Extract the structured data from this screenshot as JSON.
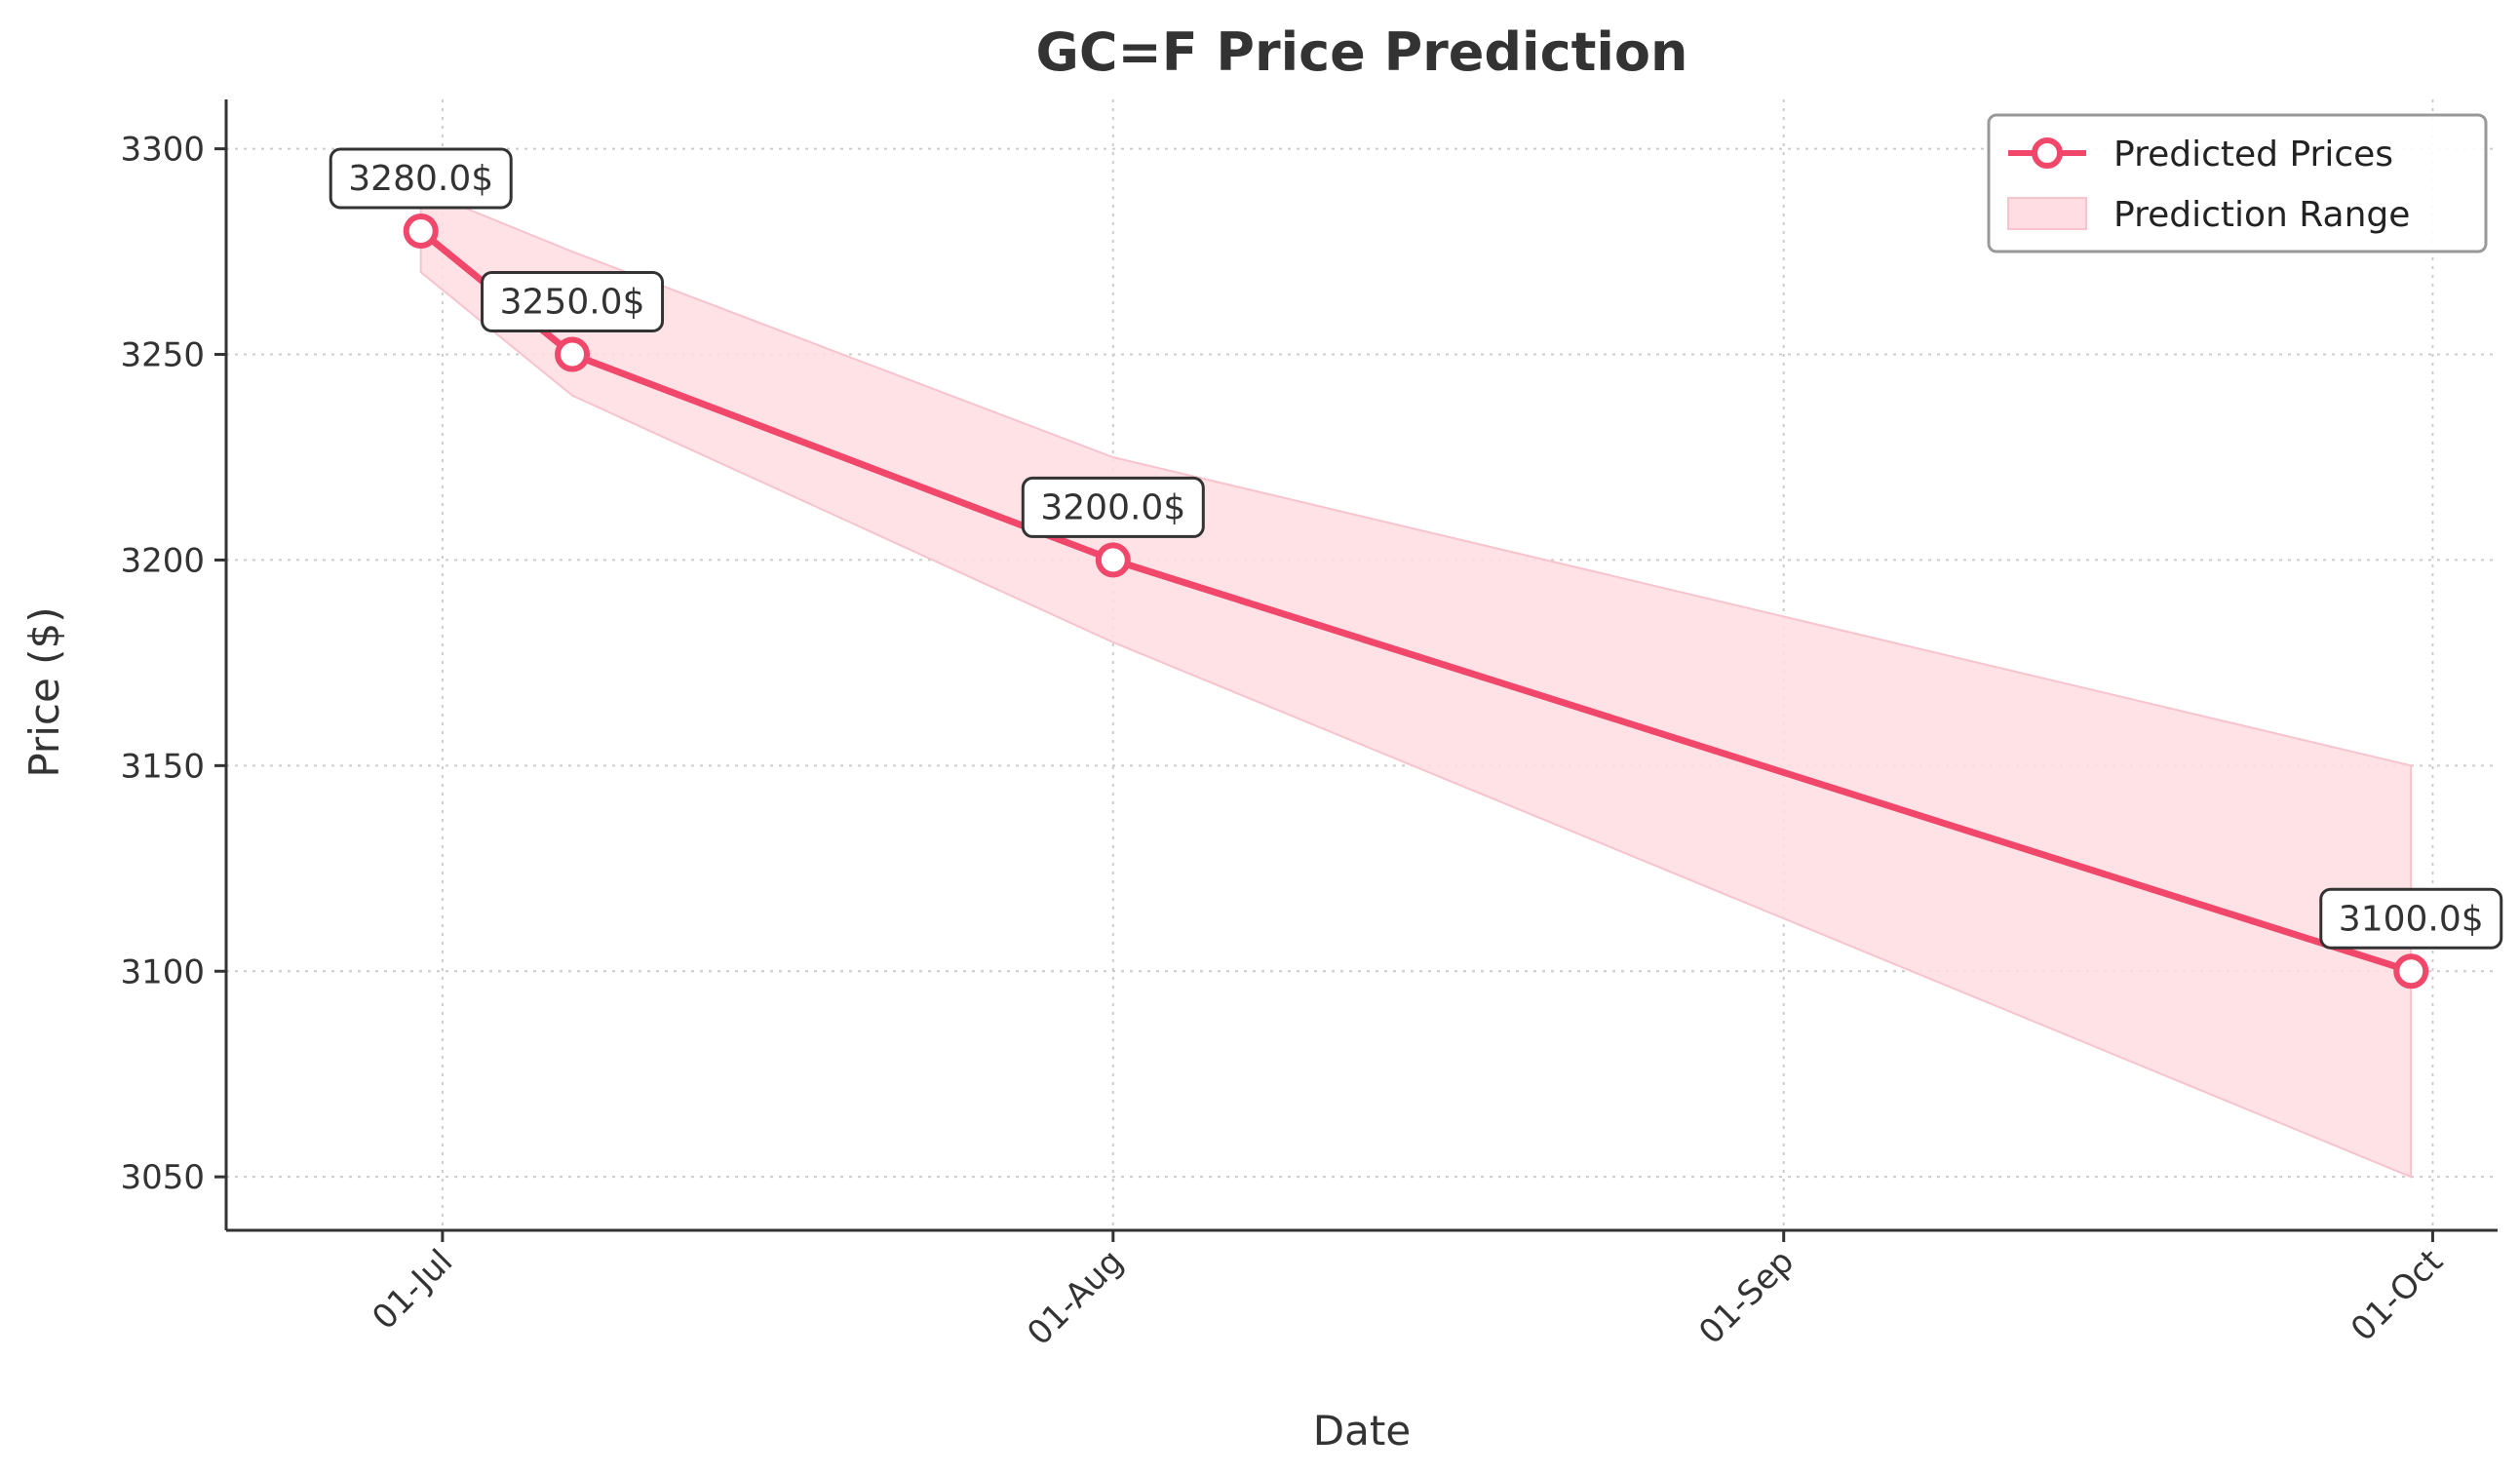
{
  "chart_data": {
    "type": "line",
    "title": "GC=F Price Prediction",
    "xlabel": "Date",
    "ylabel": "Price ($)",
    "x_axis_type": "date",
    "xlim": [
      "2025-06-21",
      "2025-10-04"
    ],
    "ylim": [
      3037,
      3312
    ],
    "x_ticks": [
      {
        "date": "2025-07-01",
        "label": "01-Jul"
      },
      {
        "date": "2025-08-01",
        "label": "01-Aug"
      },
      {
        "date": "2025-09-01",
        "label": "01-Sep"
      },
      {
        "date": "2025-10-01",
        "label": "01-Oct"
      }
    ],
    "y_ticks": [
      3050,
      3100,
      3150,
      3200,
      3250,
      3300
    ],
    "grid": true,
    "legend_position": "top-right",
    "series": [
      {
        "name": "Predicted Prices",
        "color": "#f0476a",
        "points": [
          {
            "date": "2025-06-30",
            "value": 3280.0,
            "label": "3280.0$"
          },
          {
            "date": "2025-07-07",
            "value": 3250.0,
            "label": "3250.0$"
          },
          {
            "date": "2025-08-01",
            "value": 3200.0,
            "label": "3200.0$"
          },
          {
            "date": "2025-09-30",
            "value": 3100.0,
            "label": "3100.0$"
          }
        ]
      }
    ],
    "range": {
      "name": "Prediction Range",
      "color": "#ffdde2",
      "points": [
        {
          "date": "2025-06-30",
          "low": 3270,
          "high": 3290
        },
        {
          "date": "2025-07-07",
          "low": 3240,
          "high": 3275
        },
        {
          "date": "2025-08-01",
          "low": 3180,
          "high": 3225
        },
        {
          "date": "2025-09-30",
          "low": 3050,
          "high": 3150
        }
      ]
    }
  }
}
